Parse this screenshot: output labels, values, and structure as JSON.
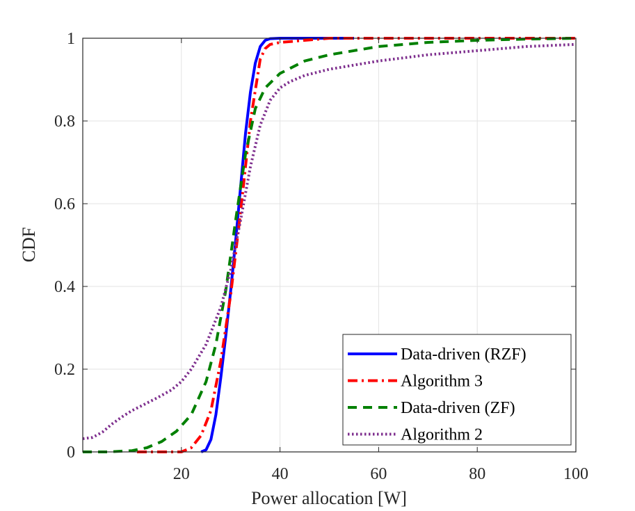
{
  "chart_data": {
    "type": "line",
    "title": "",
    "xlabel": "Power allocation [W]",
    "ylabel": "CDF",
    "xlim": [
      0,
      100
    ],
    "ylim": [
      0,
      1
    ],
    "xticks": [
      20,
      40,
      60,
      80,
      100
    ],
    "yticks": [
      0,
      0.2,
      0.4,
      0.6,
      0.8,
      1
    ],
    "xtick_labels": [
      "20",
      "40",
      "60",
      "80",
      "100"
    ],
    "ytick_labels": [
      "0",
      "0.2",
      "0.4",
      "0.6",
      "0.8",
      "1"
    ],
    "grid": true,
    "legend_position": "bottom-right",
    "series": [
      {
        "name": "Data-driven (RZF)",
        "color": "#0000ff",
        "style": "solid",
        "x": [
          24,
          25,
          26,
          27,
          28,
          29,
          30,
          31,
          32,
          33,
          34,
          35,
          36,
          37,
          38,
          40,
          45,
          55
        ],
        "y": [
          0,
          0.005,
          0.03,
          0.09,
          0.18,
          0.28,
          0.39,
          0.51,
          0.64,
          0.77,
          0.87,
          0.94,
          0.98,
          0.995,
          0.999,
          1,
          1,
          1
        ]
      },
      {
        "name": "Algorithm 3",
        "color": "#ff0000",
        "style": "dashdot",
        "x": [
          11,
          20,
          22,
          24,
          26,
          28,
          30,
          32,
          34,
          36,
          37,
          38,
          40,
          45,
          50,
          100
        ],
        "y": [
          0,
          0,
          0.01,
          0.04,
          0.1,
          0.22,
          0.38,
          0.58,
          0.8,
          0.95,
          0.975,
          0.985,
          0.99,
          0.995,
          1,
          1
        ]
      },
      {
        "name": "Data-driven (ZF)",
        "color": "#008000",
        "style": "dashed",
        "x": [
          0,
          5,
          10,
          13,
          16,
          19,
          22,
          25,
          27,
          29,
          31,
          33,
          35,
          37,
          40,
          45,
          50,
          60,
          70,
          80,
          90,
          100
        ],
        "y": [
          0,
          0,
          0.003,
          0.01,
          0.025,
          0.05,
          0.09,
          0.17,
          0.26,
          0.39,
          0.56,
          0.72,
          0.83,
          0.88,
          0.915,
          0.945,
          0.96,
          0.98,
          0.99,
          0.995,
          0.998,
          1
        ]
      },
      {
        "name": "Algorithm 2",
        "color": "#7e2f8e",
        "style": "dotted",
        "x": [
          0,
          2,
          4,
          6,
          8,
          10,
          12,
          15,
          18,
          20,
          22,
          25,
          28,
          30,
          32,
          34,
          36,
          38,
          40,
          42,
          45,
          50,
          60,
          70,
          80,
          90,
          100
        ],
        "y": [
          0.032,
          0.035,
          0.048,
          0.068,
          0.085,
          0.1,
          0.112,
          0.13,
          0.15,
          0.17,
          0.2,
          0.26,
          0.35,
          0.44,
          0.56,
          0.69,
          0.79,
          0.85,
          0.88,
          0.895,
          0.91,
          0.925,
          0.945,
          0.96,
          0.97,
          0.98,
          0.985
        ]
      }
    ]
  }
}
